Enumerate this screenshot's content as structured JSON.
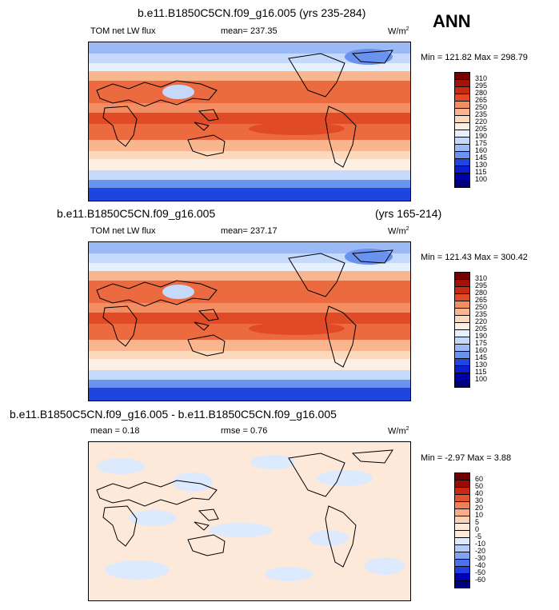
{
  "season": "ANN",
  "colors": {
    "abs_scale": [
      "#00007a",
      "#0000a8",
      "#0a1fd0",
      "#1f45e0",
      "#3e6ae9",
      "#6a92ef",
      "#9ab9f5",
      "#c5d9fa",
      "#e6effc",
      "#fcf0e4",
      "#fcd9bd",
      "#f9b58e",
      "#f38e62",
      "#ec6a40",
      "#e04a26",
      "#c92a12",
      "#a41108",
      "#7a0000"
    ],
    "diff_scale": [
      "#000080",
      "#0000b8",
      "#1f3fe0",
      "#4b72ec",
      "#80a4f3",
      "#b3cdf8",
      "#dde9fc",
      "#fde9da",
      "#fcd2b3",
      "#f8ad86",
      "#f07f56",
      "#e4532f",
      "#ca2a14",
      "#9c0a05",
      "#700000"
    ]
  },
  "chart_data": [
    {
      "type": "heatmap",
      "title": "b.e11.B1850C5CN.f09_g16.005 (yrs 235-284)",
      "variable": "TOM net LW flux",
      "mean_label": "mean= 237.35",
      "units": "W/m",
      "units_sup": "2",
      "min_max_label": "Min = 121.82 Max = 298.79",
      "min": 121.82,
      "max": 298.79,
      "mean": 237.35,
      "colorbar_levels": [
        "310",
        "295",
        "280",
        "265",
        "250",
        "235",
        "220",
        "205",
        "190",
        "175",
        "160",
        "145",
        "130",
        "115",
        "100"
      ]
    },
    {
      "type": "heatmap",
      "title_left": "b.e11.B1850C5CN.f09_g16.005",
      "title_right": "(yrs 165-214)",
      "variable": "TOM net LW flux",
      "mean_label": "mean= 237.17",
      "units": "W/m",
      "units_sup": "2",
      "min_max_label": "Min = 121.43 Max = 300.42",
      "min": 121.43,
      "max": 300.42,
      "mean": 237.17,
      "colorbar_levels": [
        "310",
        "295",
        "280",
        "265",
        "250",
        "235",
        "220",
        "205",
        "190",
        "175",
        "160",
        "145",
        "130",
        "115",
        "100"
      ]
    },
    {
      "type": "heatmap",
      "title": "b.e11.B1850C5CN.f09_g16.005 - b.e11.B1850C5CN.f09_g16.005",
      "mean_label": "mean =  0.18",
      "rmse_label": "rmse =  0.76",
      "units": "W/m",
      "units_sup": "2",
      "min_max_label": "Min =  -2.97 Max =   3.88",
      "min": -2.97,
      "max": 3.88,
      "mean": 0.18,
      "rmse": 0.76,
      "colorbar_levels": [
        "60",
        "50",
        "40",
        "30",
        "20",
        "10",
        "5",
        "0",
        "-5",
        "-10",
        "-20",
        "-30",
        "-40",
        "-50",
        "-60"
      ]
    }
  ]
}
